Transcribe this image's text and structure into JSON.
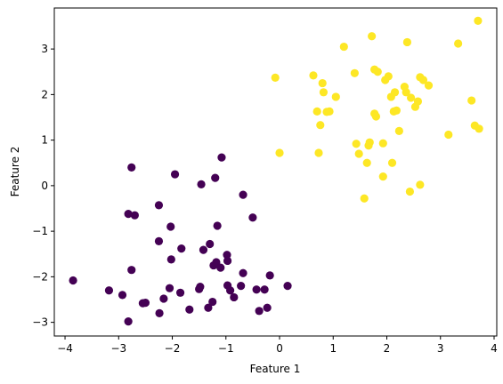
{
  "chart_data": {
    "type": "scatter",
    "title": "",
    "xlabel": "Feature 1",
    "ylabel": "Feature 2",
    "xlim": [
      -4.2,
      4.05
    ],
    "ylim": [
      -3.3,
      3.9
    ],
    "xticks": [
      -4,
      -3,
      -2,
      -1,
      0,
      1,
      2,
      3,
      4
    ],
    "yticks": [
      -3,
      -2,
      -1,
      0,
      1,
      2,
      3
    ],
    "grid": false,
    "legend": "none",
    "series": [
      {
        "color": "#440154",
        "points": [
          [
            -3.85,
            -2.08
          ],
          [
            -3.18,
            -2.3
          ],
          [
            -2.93,
            -2.4
          ],
          [
            -2.82,
            -2.98
          ],
          [
            -2.82,
            -0.62
          ],
          [
            -2.76,
            0.4
          ],
          [
            -2.76,
            -1.85
          ],
          [
            -2.7,
            -0.65
          ],
          [
            -2.55,
            -2.58
          ],
          [
            -2.5,
            -2.57
          ],
          [
            -2.25,
            -1.22
          ],
          [
            -2.25,
            -0.43
          ],
          [
            -2.24,
            -2.8
          ],
          [
            -2.16,
            -2.48
          ],
          [
            -2.05,
            -2.25
          ],
          [
            -2.03,
            -0.9
          ],
          [
            -2.02,
            -1.62
          ],
          [
            -1.95,
            0.25
          ],
          [
            -1.85,
            -2.35
          ],
          [
            -1.83,
            -1.38
          ],
          [
            -1.68,
            -2.72
          ],
          [
            -1.5,
            -2.27
          ],
          [
            -1.48,
            -2.22
          ],
          [
            -1.46,
            0.03
          ],
          [
            -1.42,
            -1.41
          ],
          [
            -1.33,
            -2.68
          ],
          [
            -1.3,
            -1.28
          ],
          [
            -1.25,
            -2.55
          ],
          [
            -1.23,
            -1.75
          ],
          [
            -1.2,
            0.17
          ],
          [
            -1.18,
            -1.68
          ],
          [
            -1.16,
            -0.88
          ],
          [
            -1.1,
            -1.8
          ],
          [
            -1.08,
            0.62
          ],
          [
            -0.98,
            -1.52
          ],
          [
            -0.97,
            -1.65
          ],
          [
            -0.97,
            -2.19
          ],
          [
            -0.92,
            -2.3
          ],
          [
            -0.85,
            -2.45
          ],
          [
            -0.72,
            -2.2
          ],
          [
            -0.68,
            -1.92
          ],
          [
            -0.68,
            -0.2
          ],
          [
            -0.5,
            -0.7
          ],
          [
            -0.43,
            -2.28
          ],
          [
            -0.38,
            -2.75
          ],
          [
            -0.28,
            -2.28
          ],
          [
            -0.23,
            -2.68
          ],
          [
            -0.18,
            -1.97
          ],
          [
            0.15,
            -2.2
          ]
        ]
      },
      {
        "color": "#fde725",
        "points": [
          [
            -0.08,
            2.37
          ],
          [
            0.0,
            0.72
          ],
          [
            0.63,
            2.42
          ],
          [
            0.7,
            1.63
          ],
          [
            0.73,
            0.72
          ],
          [
            0.76,
            1.33
          ],
          [
            0.8,
            2.25
          ],
          [
            0.82,
            2.05
          ],
          [
            0.88,
            1.62
          ],
          [
            0.93,
            1.63
          ],
          [
            1.05,
            1.95
          ],
          [
            1.2,
            3.05
          ],
          [
            1.4,
            2.47
          ],
          [
            1.43,
            0.92
          ],
          [
            1.48,
            0.7
          ],
          [
            1.58,
            -0.28
          ],
          [
            1.63,
            0.5
          ],
          [
            1.66,
            0.88
          ],
          [
            1.68,
            0.95
          ],
          [
            1.72,
            3.28
          ],
          [
            1.77,
            2.55
          ],
          [
            1.77,
            1.58
          ],
          [
            1.8,
            1.52
          ],
          [
            1.83,
            2.5
          ],
          [
            1.93,
            0.93
          ],
          [
            1.93,
            0.2
          ],
          [
            1.97,
            2.32
          ],
          [
            2.03,
            2.4
          ],
          [
            2.08,
            1.95
          ],
          [
            2.1,
            0.5
          ],
          [
            2.13,
            1.63
          ],
          [
            2.15,
            2.05
          ],
          [
            2.18,
            1.65
          ],
          [
            2.23,
            1.2
          ],
          [
            2.33,
            2.17
          ],
          [
            2.36,
            2.05
          ],
          [
            2.38,
            3.15
          ],
          [
            2.43,
            -0.13
          ],
          [
            2.45,
            1.93
          ],
          [
            2.53,
            1.73
          ],
          [
            2.58,
            1.85
          ],
          [
            2.62,
            0.02
          ],
          [
            2.62,
            2.38
          ],
          [
            2.68,
            2.32
          ],
          [
            2.78,
            2.2
          ],
          [
            3.15,
            1.12
          ],
          [
            3.33,
            3.12
          ],
          [
            3.58,
            1.87
          ],
          [
            3.64,
            1.32
          ],
          [
            3.7,
            3.62
          ],
          [
            3.72,
            1.25
          ]
        ]
      }
    ]
  }
}
